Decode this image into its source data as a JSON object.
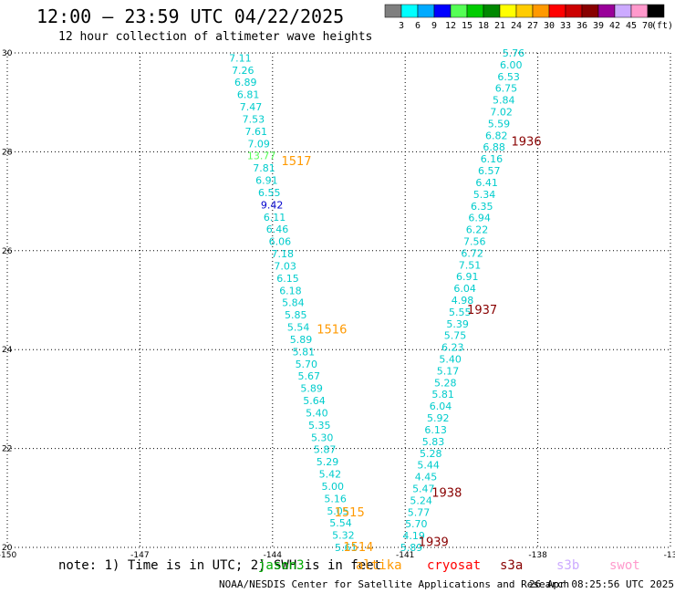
{
  "header": {
    "title": "12:00 — 23:59 UTC 04/22/2025",
    "subtitle": "12 hour collection of altimeter wave heights"
  },
  "colorbar": {
    "units": "(ft)",
    "colors": [
      "#7f7f7f",
      "#00ffff",
      "#00aaff",
      "#0000ff",
      "#55ff55",
      "#00cc00",
      "#008800",
      "#ffff00",
      "#ffcc00",
      "#ff9900",
      "#ff0000",
      "#cc0000",
      "#880000",
      "#990099",
      "#ccaaff",
      "#ff99cc",
      "#000000"
    ],
    "labels": [
      "3",
      "6",
      "9",
      "12",
      "15",
      "18",
      "21",
      "24",
      "27",
      "30",
      "33",
      "36",
      "39",
      "42",
      "45",
      "70"
    ]
  },
  "axes": {
    "x_ticks": [
      "-150",
      "-147",
      "-144",
      "-141",
      "-138",
      "-13"
    ],
    "y_ticks": [
      "30",
      "28",
      "26",
      "24",
      "22",
      "20"
    ]
  },
  "footer": {
    "note": "note: 1) Time is in UTC; 2) SWH is in feet",
    "credit": "NOAA/NESDIS Center for Satellite Applications and Research",
    "stamp": "26 Apr 08:25:56 UTC 2025"
  },
  "legend": [
    {
      "name": "jason3",
      "color": "#00aa00"
    },
    {
      "name": "altika",
      "color": "#ff9900"
    },
    {
      "name": "cryosat",
      "color": "#ff0000"
    },
    {
      "name": "s3a",
      "color": "#880000"
    },
    {
      "name": "s3b",
      "color": "#ccaaff"
    },
    {
      "name": "swot",
      "color": "#ff99cc"
    }
  ],
  "track_labels": [
    {
      "text": "1517",
      "color": "#ff9900",
      "lon": -143.8,
      "lat": 27.8
    },
    {
      "text": "1516",
      "color": "#ff9900",
      "lon": -143.0,
      "lat": 24.4
    },
    {
      "text": "1515",
      "color": "#ff9900",
      "lon": -142.6,
      "lat": 20.7
    },
    {
      "text": "1514",
      "color": "#ff9900",
      "lon": -142.4,
      "lat": 20.0
    },
    {
      "text": "1936",
      "color": "#880000",
      "lon": -138.6,
      "lat": 28.2
    },
    {
      "text": "1937",
      "color": "#880000",
      "lon": -139.6,
      "lat": 24.8
    },
    {
      "text": "1938",
      "color": "#880000",
      "lon": -140.4,
      "lat": 21.1
    },
    {
      "text": "1939",
      "color": "#880000",
      "lon": -140.7,
      "lat": 20.1
    }
  ],
  "observations": {
    "track_a": {
      "start": [
        -144.73,
        29.9
      ],
      "end": [
        -142.34,
        20.0
      ],
      "values": [
        "7.11",
        "7.26",
        "6.89",
        "6.81",
        "7.47",
        "7.53",
        "7.61",
        "7.09",
        "13.77",
        "7.81",
        "6.91",
        "6.55",
        "9.42",
        "6.11",
        "6.46",
        "6.06",
        "7.18",
        "7.03",
        "6.15",
        "6.18",
        "5.84",
        "5.85",
        "5.54",
        "5.89",
        "5.81",
        "5.70",
        "5.67",
        "5.89",
        "5.64",
        "5.40",
        "5.35",
        "5.30",
        "5.87",
        "5.29",
        "5.42",
        "5.00",
        "5.16",
        "5.05",
        "5.54",
        "5.32",
        "5.61"
      ],
      "colors": [
        "#00cccc",
        "#00cccc",
        "#00cccc",
        "#00cccc",
        "#00cccc",
        "#00cccc",
        "#00cccc",
        "#00cccc",
        "#55ff55",
        "#00cccc",
        "#00cccc",
        "#00cccc",
        "#0000cc",
        "#00cccc",
        "#00cccc",
        "#00cccc",
        "#00cccc",
        "#00cccc",
        "#00cccc",
        "#00cccc",
        "#00cccc",
        "#00cccc",
        "#00cccc",
        "#00cccc",
        "#00cccc",
        "#00cccc",
        "#00cccc",
        "#00cccc",
        "#00cccc",
        "#00cccc",
        "#00cccc",
        "#00cccc",
        "#00cccc",
        "#00cccc",
        "#00cccc",
        "#00cccc",
        "#00cccc",
        "#00cccc",
        "#00cccc",
        "#00cccc",
        "#00cccc"
      ]
    },
    "track_b": {
      "start": [
        -138.55,
        30.0
      ],
      "end": [
        -140.86,
        20.0
      ],
      "values": [
        "5.76",
        "6.00",
        "6.53",
        "6.75",
        "5.84",
        "7.02",
        "5.59",
        "6.82",
        "6.88",
        "6.16",
        "6.57",
        "6.41",
        "5.34",
        "6.35",
        "6.94",
        "6.22",
        "7.56",
        "6.72",
        "7.51",
        "6.91",
        "6.04",
        "4.98",
        "5.55",
        "5.39",
        "5.75",
        "6.23",
        "5.40",
        "5.17",
        "5.28",
        "5.81",
        "6.04",
        "5.92",
        "6.13",
        "5.83",
        "5.28",
        "5.44",
        "4.45",
        "5.47",
        "5.24",
        "5.77",
        "5.70",
        "4.19",
        "5.89"
      ],
      "color": "#00cccc"
    }
  }
}
